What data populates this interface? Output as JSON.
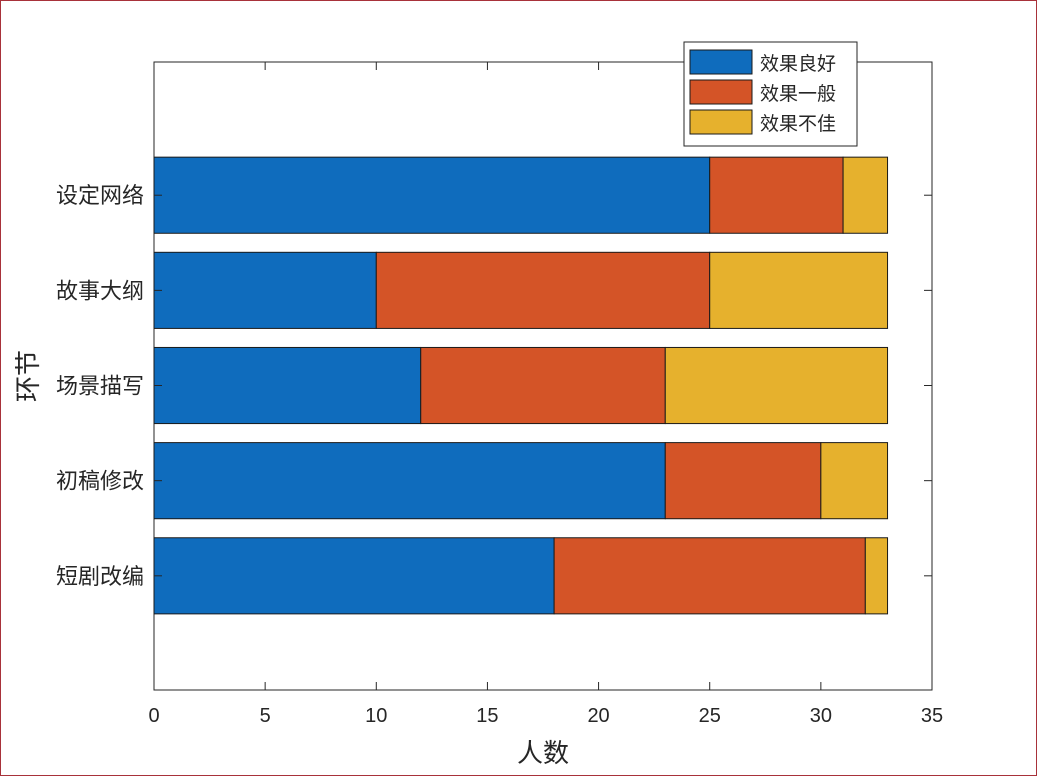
{
  "chart_data": {
    "type": "bar",
    "orientation": "horizontal",
    "stacked": true,
    "xlabel": "人数",
    "ylabel": "环节",
    "xlim": [
      0,
      35
    ],
    "xticks": [
      0,
      5,
      10,
      15,
      20,
      25,
      30,
      35
    ],
    "categories": [
      "设定网络",
      "故事大纲",
      "场景描写",
      "初稿修改",
      "短剧改编"
    ],
    "series": [
      {
        "name": "效果良好",
        "color": "#0f6cbd",
        "values": [
          25,
          10,
          12,
          23,
          18
        ]
      },
      {
        "name": "效果一般",
        "color": "#d45427",
        "values": [
          6,
          15,
          11,
          7,
          14
        ]
      },
      {
        "name": "效果不佳",
        "color": "#e6b12d",
        "values": [
          2,
          8,
          10,
          3,
          1
        ]
      }
    ],
    "legend_position": "top-right",
    "grid": false
  }
}
